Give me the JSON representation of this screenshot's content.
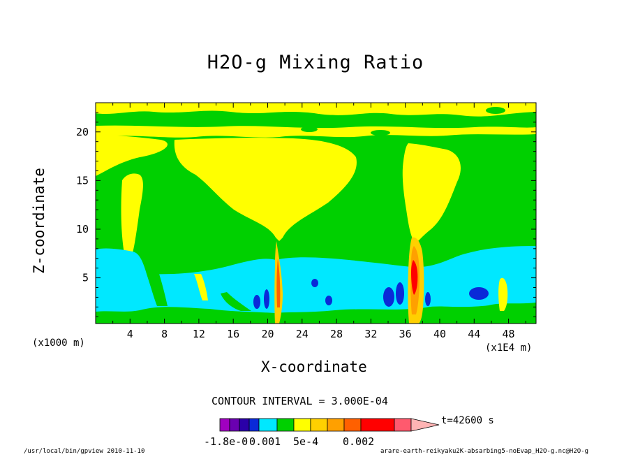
{
  "chart_data": {
    "type": "heatmap",
    "title": "H2O-g Mixing Ratio",
    "xlabel": "X-coordinate",
    "ylabel": "Z-coordinate",
    "x_unit_left": "(x1000 m)",
    "x_unit_right": "(x1E4 m)",
    "x_ticks": [
      "4",
      "8",
      "12",
      "16",
      "20",
      "24",
      "28",
      "32",
      "36",
      "40",
      "44",
      "48"
    ],
    "y_ticks": [
      "5",
      "10",
      "15",
      "20"
    ],
    "xlim": [
      0,
      51.2
    ],
    "ylim": [
      0.3,
      23
    ],
    "contour_interval_text": "CONTOUR INTERVAL = 3.000E-04",
    "time_text": "t=42600 s",
    "colorbar_labels": [
      "-1.8e-0",
      "0.001",
      "5e-4",
      "0.002"
    ],
    "colorbar_colors": [
      "#a000c0",
      "#6a00b0",
      "#2a00a8",
      "#0a2ad8",
      "#00e8ff",
      "#00d000",
      "#ffff00",
      "#ffd000",
      "#ffa000",
      "#ff6000",
      "#ff0000",
      "#ff5a6e",
      "#ffb4b4"
    ],
    "colors": {
      "background": "#00ff00",
      "green": "#00d000",
      "yellow": "#ffff00",
      "cyan": "#00e8ff",
      "blue": "#0a2ad8",
      "red": "#ff0000"
    }
  },
  "footer_left": "/usr/local/bin/gpview  2010-11-10",
  "footer_right": "arare-earth-reikyaku2K-absarbing5-noEvap_H2O-g.nc@H2O-g"
}
